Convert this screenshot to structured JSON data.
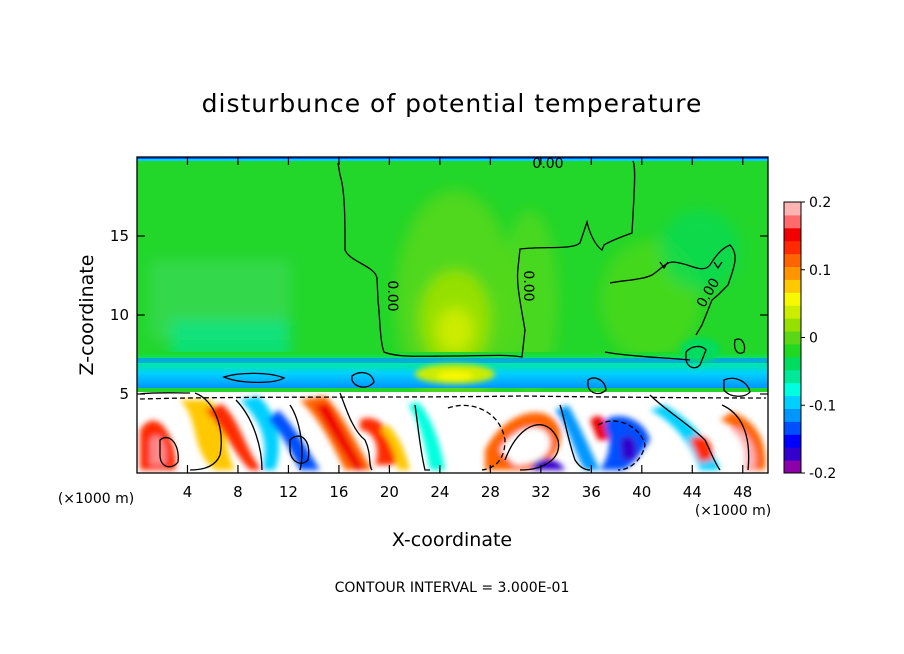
{
  "chart_data": {
    "type": "heatmap",
    "title": "disturbunce of potential temperature",
    "xlabel": "X-coordinate",
    "ylabel": "Z-coordinate",
    "x_unit": "(×1000 m)",
    "x_unit_right": "(×1000 m)",
    "xlim": [
      0,
      50
    ],
    "ylim": [
      0,
      20
    ],
    "x_ticks": [
      4,
      8,
      12,
      16,
      20,
      24,
      28,
      32,
      36,
      40,
      44,
      48
    ],
    "y_ticks": [
      5,
      10,
      15
    ],
    "colorbar": {
      "range": [
        -0.2,
        0.2
      ],
      "ticks": [
        "0.2",
        "0.1",
        "0",
        "-0.1",
        "-0.2"
      ],
      "tick_values": [
        0.2,
        0.1,
        0,
        -0.1,
        -0.2
      ],
      "colors": [
        "#8b00a8",
        "#3300cc",
        "#0000ff",
        "#0050ff",
        "#0096ff",
        "#00d0ff",
        "#00ffe0",
        "#00e89a",
        "#00dc60",
        "#20d820",
        "#5ad818",
        "#96e000",
        "#ccec00",
        "#f8f800",
        "#ffc800",
        "#ff9600",
        "#ff6400",
        "#ff2a00",
        "#f00000",
        "#ff6a6a",
        "#ffb4b4"
      ]
    },
    "contour_labels": [
      "0.00",
      "0.00",
      "0.00",
      "0.00"
    ],
    "footer": "CONTOUR INTERVAL = 3.000E-01"
  }
}
